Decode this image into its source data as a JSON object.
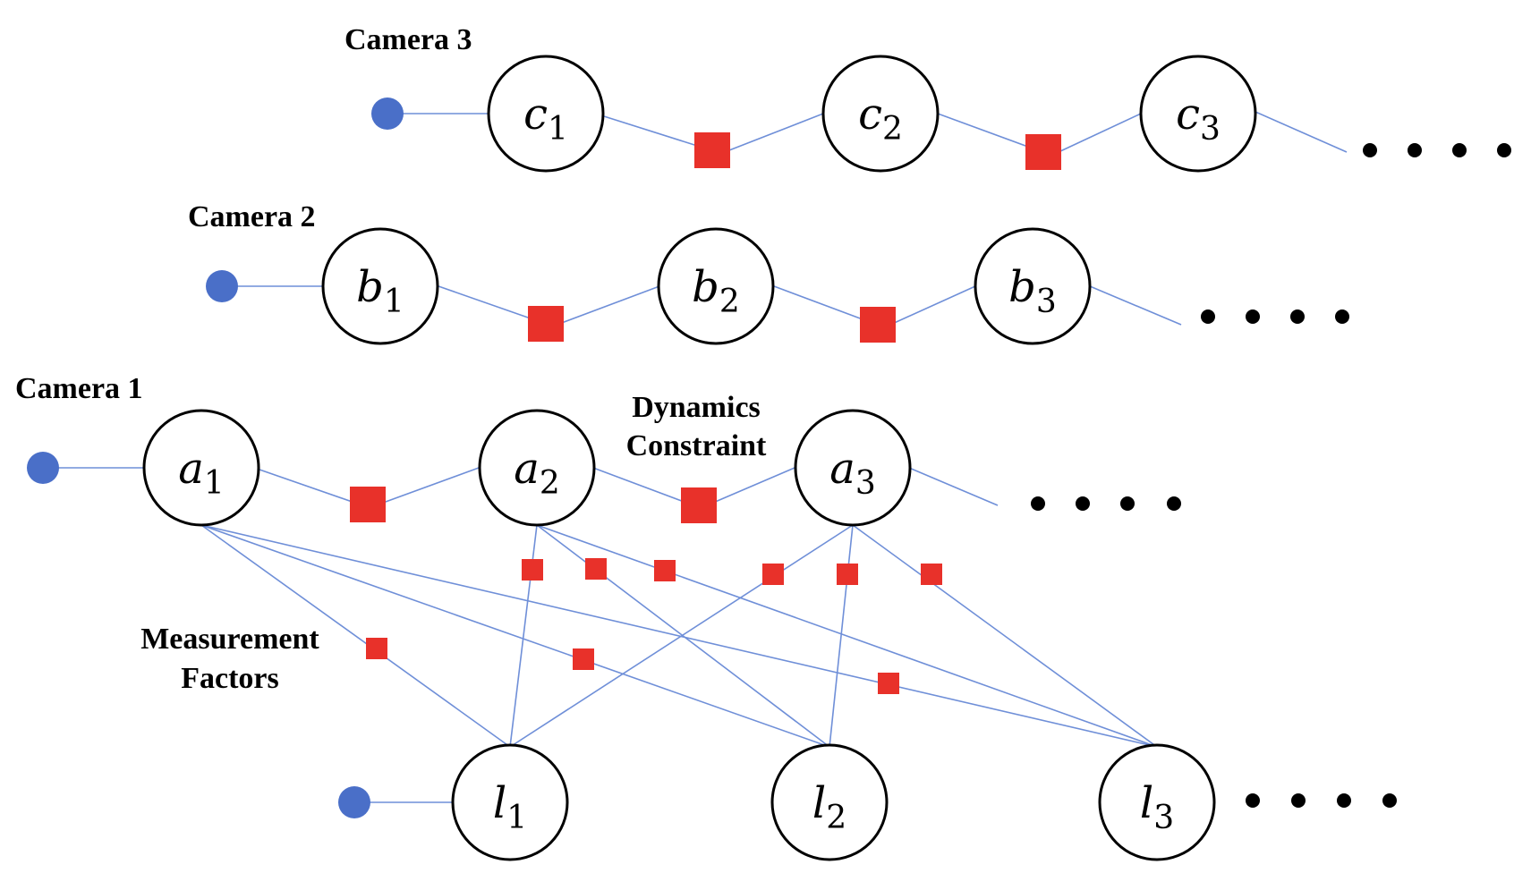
{
  "colors": {
    "edge": "#6f8fd8",
    "prior": "#4a6fc8",
    "factor": "#e8312a",
    "node_border": "#000000"
  },
  "labels": {
    "camera3": "Camera 3",
    "camera2": "Camera 2",
    "camera1": "Camera 1",
    "dynamics_line1": "Dynamics",
    "dynamics_line2": "Constraint",
    "measurement_line1": "Measurement",
    "measurement_line2": "Factors"
  },
  "nodes": {
    "c": [
      {
        "letter": "c",
        "sub": "1"
      },
      {
        "letter": "c",
        "sub": "2"
      },
      {
        "letter": "c",
        "sub": "3"
      }
    ],
    "b": [
      {
        "letter": "b",
        "sub": "1"
      },
      {
        "letter": "b",
        "sub": "2"
      },
      {
        "letter": "b",
        "sub": "3"
      }
    ],
    "a": [
      {
        "letter": "a",
        "sub": "1"
      },
      {
        "letter": "a",
        "sub": "2"
      },
      {
        "letter": "a",
        "sub": "3"
      }
    ],
    "l": [
      {
        "letter": "l",
        "sub": "1"
      },
      {
        "letter": "l",
        "sub": "2"
      },
      {
        "letter": "l",
        "sub": "3"
      }
    ]
  },
  "icons": {
    "prior": "filled-circle",
    "factor": "filled-square",
    "continuation": "ellipsis-dots"
  }
}
